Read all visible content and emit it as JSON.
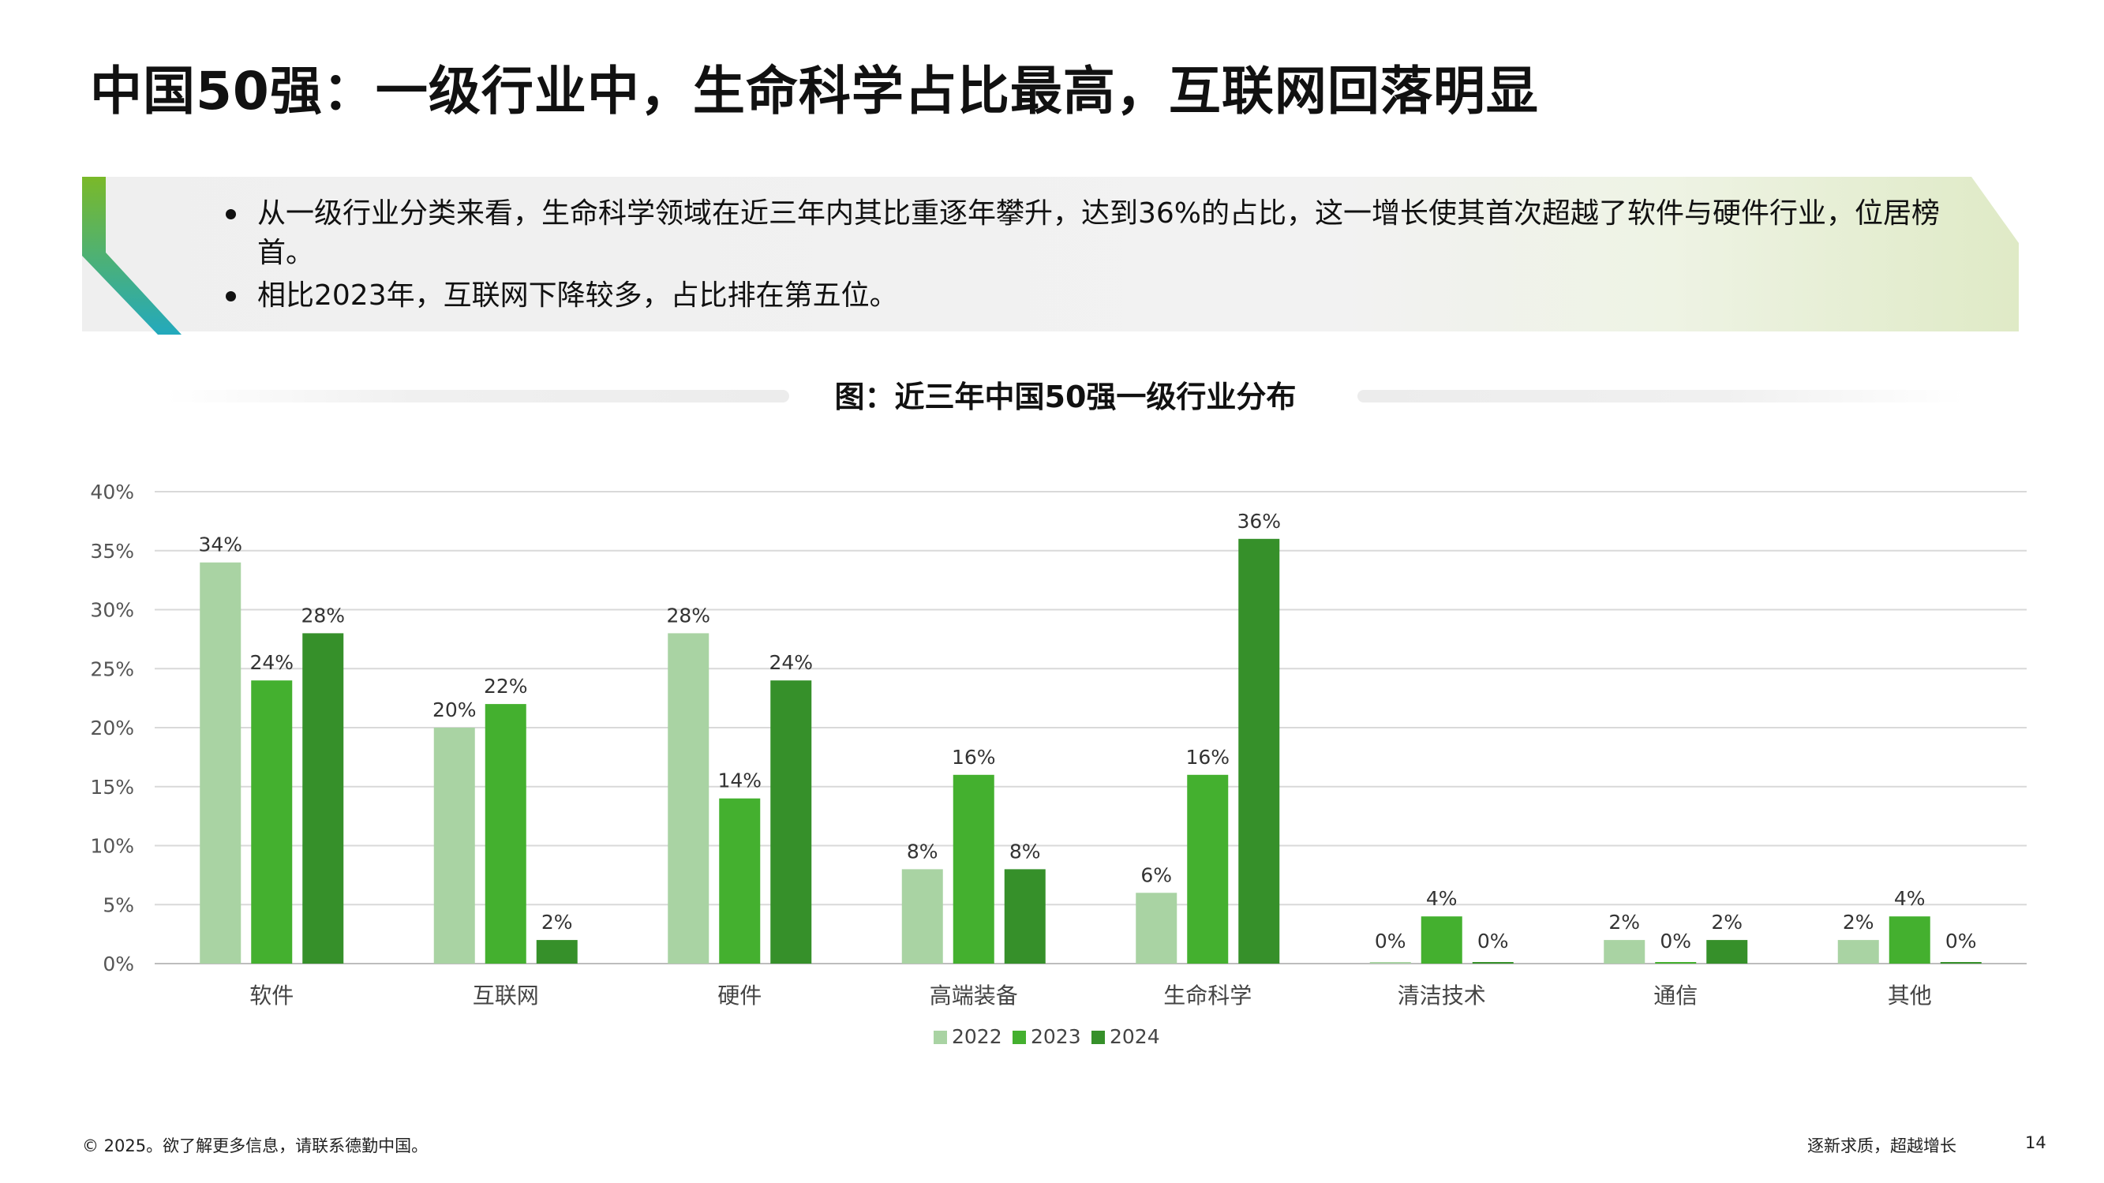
{
  "title": "中国50强：一级行业中，生命科学占比最高，互联网回落明显",
  "summary": {
    "bullets": [
      "从一级行业分类来看，生命科学领域在近三年内其比重逐年攀升，达到36%的占比，这一增长使其首次超越了软件与硬件行业，位居榜首。",
      "相比2023年，互联网下降较多，占比排在第五位。"
    ]
  },
  "chart_title": "图：近三年中国50强一级行业分布",
  "colors": {
    "s2022": "#a9d3a3",
    "s2023": "#44b02f",
    "s2024": "#36902a",
    "accent_top": "#7ab929",
    "accent_bottom": "#23a9bd"
  },
  "chart_data": {
    "type": "bar",
    "title": "图：近三年中国50强一级行业分布",
    "categories": [
      "软件",
      "互联网",
      "硬件",
      "高端装备",
      "生命科学",
      "清洁技术",
      "通信",
      "其他"
    ],
    "series": [
      {
        "name": "2022",
        "values": [
          34,
          20,
          28,
          8,
          6,
          0,
          2,
          2
        ]
      },
      {
        "name": "2023",
        "values": [
          24,
          22,
          14,
          16,
          16,
          4,
          0,
          4
        ]
      },
      {
        "name": "2024",
        "values": [
          28,
          2,
          24,
          8,
          36,
          0,
          2,
          0
        ]
      }
    ],
    "value_format": "%",
    "ylim": [
      0,
      40
    ],
    "yticks": [
      "0%",
      "5%",
      "10%",
      "15%",
      "20%",
      "25%",
      "30%",
      "35%",
      "40%"
    ],
    "grid": true,
    "legend": "bottom-center"
  },
  "footer": {
    "copyright": "© 2025。欲了解更多信息，请联系德勤中国。",
    "tagline": "逐新求质，超越增长",
    "page": "14"
  }
}
